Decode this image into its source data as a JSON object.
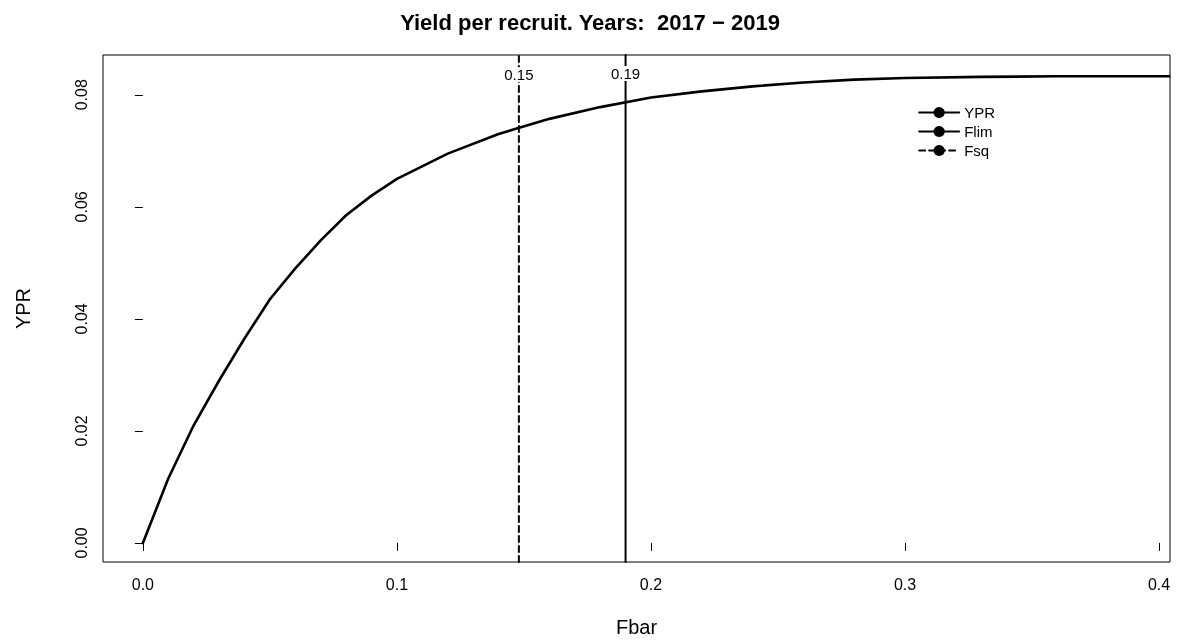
{
  "chart_data": {
    "type": "line",
    "title": "Yield per recruit. Years:  2017 − 2019",
    "xlabel": "Fbar",
    "ylabel": "YPR",
    "series": [
      {
        "name": "YPR",
        "color": "#000000",
        "line_style": "solid",
        "x": [
          0,
          0.01,
          0.02,
          0.03,
          0.04,
          0.05,
          0.06,
          0.07,
          0.08,
          0.09,
          0.1,
          0.12,
          0.14,
          0.16,
          0.18,
          0.2,
          0.22,
          0.24,
          0.26,
          0.28,
          0.3,
          0.33,
          0.36,
          0.404
        ],
        "values": [
          0,
          0.0115,
          0.021,
          0.029,
          0.0365,
          0.0435,
          0.049,
          0.054,
          0.0585,
          0.062,
          0.065,
          0.0695,
          0.073,
          0.0757,
          0.0778,
          0.0795,
          0.0806,
          0.0815,
          0.0822,
          0.0827,
          0.083,
          0.0832,
          0.0833,
          0.0833
        ]
      },
      {
        "name": "Flim",
        "color": "#000000",
        "line_style": "solid",
        "x": [
          0.19,
          0.19
        ],
        "values": [
          -0.0034,
          0.0871
        ]
      },
      {
        "name": "Fsq",
        "color": "#000000",
        "line_style": "dashed",
        "x": [
          0.148,
          0.148
        ],
        "values": [
          -0.0034,
          0.0871
        ]
      }
    ],
    "annotations": [
      {
        "text": "0.15",
        "x": 0.148,
        "y": 0.0836
      },
      {
        "text": "0.19",
        "x": 0.19,
        "y": 0.0838
      }
    ],
    "xlim": [
      -0.0157,
      0.4043
    ],
    "ylim": [
      -0.0034,
      0.0871
    ],
    "xticks": [
      {
        "value": 0,
        "label": "0.0"
      },
      0.1,
      0.2,
      0.3,
      0.4
    ],
    "yticks": [
      {
        "value": 0,
        "label": "0.00"
      },
      {
        "value": 0.02,
        "label": "0.02"
      },
      {
        "value": 0.04,
        "label": "0.04"
      },
      {
        "value": 0.06,
        "label": "0.06"
      },
      {
        "value": 0.08,
        "label": "0.08"
      }
    ],
    "grid": false,
    "legend": "top right",
    "marker": "none"
  }
}
